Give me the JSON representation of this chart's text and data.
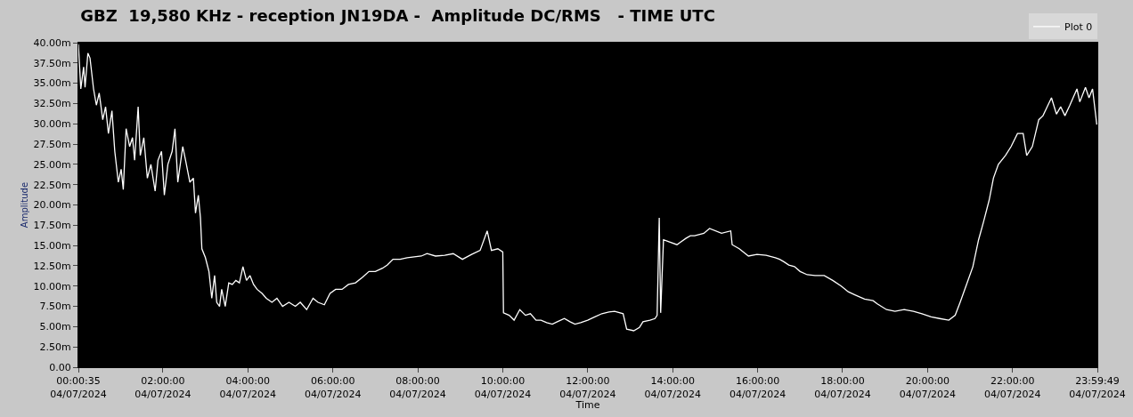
{
  "chart_data": {
    "type": "line",
    "title": "GBZ  19,580 KHz - reception JN19DA -  Amplitude DC/RMS   - TIME UTC",
    "xlabel": "Time",
    "ylabel": "Amplitude",
    "xlim": [
      "2024-07-04T00:00:35",
      "2024-07-04T23:59:49"
    ],
    "xticks": [
      {
        "value": "2024-07-04T00:00:35",
        "label": "00:00:35\n04/07/2024"
      },
      {
        "value": "2024-07-04T02:00",
        "label": "02:00:00\n04/07/2024"
      },
      {
        "value": "2024-07-04T04:00",
        "label": "04:00:00\n04/07/2024"
      },
      {
        "value": "2024-07-04T06:00",
        "label": "06:00:00\n04/07/2024"
      },
      {
        "value": "2024-07-04T08:00",
        "label": "08:00:00\n04/07/2024"
      },
      {
        "value": "2024-07-04T10:00",
        "label": "10:00:00\n04/07/2024"
      },
      {
        "value": "2024-07-04T12:00",
        "label": "12:00:00\n04/07/2024"
      },
      {
        "value": "2024-07-04T14:00",
        "label": "14:00:00\n04/07/2024"
      },
      {
        "value": "2024-07-04T16:00",
        "label": "16:00:00\n04/07/2024"
      },
      {
        "value": "2024-07-04T18:00",
        "label": "18:00:00\n04/07/2024"
      },
      {
        "value": "2024-07-04T20:00",
        "label": "20:00:00\n04/07/2024"
      },
      {
        "value": "2024-07-04T22:00",
        "label": "22:00:00\n04/07/2024"
      },
      {
        "value": "2024-07-04T23:59:49",
        "label": "23:59:49\n04/07/2024"
      }
    ],
    "ylim": [
      0,
      40
    ],
    "yticks": [
      {
        "value": 0,
        "label": "0.00"
      },
      {
        "value": 2.5,
        "label": "2.50m"
      },
      {
        "value": 5,
        "label": "5.00m"
      },
      {
        "value": 7.5,
        "label": "7.50m"
      },
      {
        "value": 10,
        "label": "10.00m"
      },
      {
        "value": 12.5,
        "label": "12.50m"
      },
      {
        "value": 15,
        "label": "15.00m"
      },
      {
        "value": 17.5,
        "label": "17.50m"
      },
      {
        "value": 20,
        "label": "20.00m"
      },
      {
        "value": 22.5,
        "label": "22.50m"
      },
      {
        "value": 25,
        "label": "25.00m"
      },
      {
        "value": 27.5,
        "label": "27.50m"
      },
      {
        "value": 30,
        "label": "30.00m"
      },
      {
        "value": 32.5,
        "label": "32.50m"
      },
      {
        "value": 35,
        "label": "35.00m"
      },
      {
        "value": 37.5,
        "label": "37.50m"
      },
      {
        "value": 40,
        "label": "40.00m"
      }
    ],
    "grid": false,
    "legend": "top right",
    "marker": "none",
    "line_style": "solid",
    "x": [
      "2024-07-04T00:00:35",
      "2024-07-04T00:04",
      "2024-07-04T00:08",
      "2024-07-04T00:10",
      "2024-07-04T00:14",
      "2024-07-04T00:17",
      "2024-07-04T00:22",
      "2024-07-04T00:26",
      "2024-07-04T00:30",
      "2024-07-04T00:35",
      "2024-07-04T00:39",
      "2024-07-04T00:43",
      "2024-07-04T00:48",
      "2024-07-04T00:52",
      "2024-07-04T00:57",
      "2024-07-04T01:01",
      "2024-07-04T01:04",
      "2024-07-04T01:08",
      "2024-07-04T01:13",
      "2024-07-04T01:17",
      "2024-07-04T01:20",
      "2024-07-04T01:25",
      "2024-07-04T01:28",
      "2024-07-04T01:33",
      "2024-07-04T01:38",
      "2024-07-04T01:43",
      "2024-07-04T01:49",
      "2024-07-04T01:53",
      "2024-07-04T01:58",
      "2024-07-04T02:02",
      "2024-07-04T02:07",
      "2024-07-04T02:13",
      "2024-07-04T02:17",
      "2024-07-04T02:21",
      "2024-07-04T02:28",
      "2024-07-04T02:32",
      "2024-07-04T02:38",
      "2024-07-04T02:43",
      "2024-07-04T02:46",
      "2024-07-04T02:50",
      "2024-07-04T02:53",
      "2024-07-04T02:55",
      "2024-07-04T03:00",
      "2024-07-04T03:05",
      "2024-07-04T03:09",
      "2024-07-04T03:13",
      "2024-07-04T03:16",
      "2024-07-04T03:20",
      "2024-07-04T03:23",
      "2024-07-04T03:28",
      "2024-07-04T03:33",
      "2024-07-04T03:38",
      "2024-07-04T03:43",
      "2024-07-04T03:48",
      "2024-07-04T03:53",
      "2024-07-04T03:58",
      "2024-07-04T04:03",
      "2024-07-04T04:08",
      "2024-07-04T04:13",
      "2024-07-04T04:20",
      "2024-07-04T04:26",
      "2024-07-04T04:34",
      "2024-07-04T04:41",
      "2024-07-04T04:49",
      "2024-07-04T04:58",
      "2024-07-04T05:07",
      "2024-07-04T05:14",
      "2024-07-04T05:23",
      "2024-07-04T05:32",
      "2024-07-04T05:39",
      "2024-07-04T05:48",
      "2024-07-04T05:56",
      "2024-07-04T06:04",
      "2024-07-04T06:13",
      "2024-07-04T06:22",
      "2024-07-04T06:32",
      "2024-07-04T06:42",
      "2024-07-04T06:51",
      "2024-07-04T07:00",
      "2024-07-04T07:10",
      "2024-07-04T07:17",
      "2024-07-04T07:25",
      "2024-07-04T07:35",
      "2024-07-04T07:45",
      "2024-07-04T07:55",
      "2024-07-04T08:05",
      "2024-07-04T08:13",
      "2024-07-04T08:25",
      "2024-07-04T08:38",
      "2024-07-04T08:50",
      "2024-07-04T09:03",
      "2024-07-04T09:16",
      "2024-07-04T09:28",
      "2024-07-04T09:38",
      "2024-07-04T09:44",
      "2024-07-04T09:53",
      "2024-07-04T10:00",
      "2024-07-04T10:01",
      "2024-07-04T10:09",
      "2024-07-04T10:16",
      "2024-07-04T10:24",
      "2024-07-04T10:32",
      "2024-07-04T10:39",
      "2024-07-04T10:47",
      "2024-07-04T10:54",
      "2024-07-04T11:02",
      "2024-07-04T11:10",
      "2024-07-04T11:17",
      "2024-07-04T11:27",
      "2024-07-04T11:35",
      "2024-07-04T11:42",
      "2024-07-04T11:50",
      "2024-07-04T12:00",
      "2024-07-04T12:10",
      "2024-07-04T12:20",
      "2024-07-04T12:30",
      "2024-07-04T12:38",
      "2024-07-04T12:50",
      "2024-07-04T12:55",
      "2024-07-04T13:05",
      "2024-07-04T13:13",
      "2024-07-04T13:18",
      "2024-07-04T13:28",
      "2024-07-04T13:35",
      "2024-07-04T13:38",
      "2024-07-04T13:41",
      "2024-07-04T13:43",
      "2024-07-04T13:47",
      "2024-07-04T14:06",
      "2024-07-04T14:19",
      "2024-07-04T14:25",
      "2024-07-04T14:31",
      "2024-07-04T14:44",
      "2024-07-04T14:52",
      "2024-07-04T15:09",
      "2024-07-04T15:22",
      "2024-07-04T15:24",
      "2024-07-04T15:34",
      "2024-07-04T15:47",
      "2024-07-04T15:59",
      "2024-07-04T16:12",
      "2024-07-04T16:25",
      "2024-07-04T16:31",
      "2024-07-04T16:37",
      "2024-07-04T16:44",
      "2024-07-04T16:52",
      "2024-07-04T17:00",
      "2024-07-04T17:10",
      "2024-07-04T17:21",
      "2024-07-04T17:34",
      "2024-07-04T17:46",
      "2024-07-04T17:58",
      "2024-07-04T18:08",
      "2024-07-04T18:18",
      "2024-07-04T18:31",
      "2024-07-04T18:43",
      "2024-07-04T18:49",
      "2024-07-04T19:02",
      "2024-07-04T19:14",
      "2024-07-04T19:27",
      "2024-07-04T19:40",
      "2024-07-04T19:52",
      "2024-07-04T20:05",
      "2024-07-04T20:17",
      "2024-07-04T20:30",
      "2024-07-04T20:39",
      "2024-07-04T20:46",
      "2024-07-04T20:55",
      "2024-07-04T21:04",
      "2024-07-04T21:12",
      "2024-07-04T21:19",
      "2024-07-04T21:27",
      "2024-07-04T21:33",
      "2024-07-04T21:40",
      "2024-07-04T21:50",
      "2024-07-04T21:58",
      "2024-07-04T22:07",
      "2024-07-04T22:15",
      "2024-07-04T22:20",
      "2024-07-04T22:28",
      "2024-07-04T22:37",
      "2024-07-04T22:43",
      "2024-07-04T22:49",
      "2024-07-04T22:55",
      "2024-07-04T23:02",
      "2024-07-04T23:08",
      "2024-07-04T23:14",
      "2024-07-04T23:21",
      "2024-07-04T23:31",
      "2024-07-04T23:35",
      "2024-07-04T23:43",
      "2024-07-04T23:48",
      "2024-07-04T23:53",
      "2024-07-04T23:59"
    ],
    "series": [
      {
        "name": "Plot 0",
        "color": "#ffffff",
        "values": [
          39.8,
          34.3,
          37.0,
          34.5,
          38.7,
          38.1,
          34.3,
          32.3,
          33.8,
          30.5,
          32.1,
          28.8,
          31.6,
          26.6,
          22.8,
          24.4,
          21.9,
          29.4,
          27.2,
          28.3,
          25.5,
          32.1,
          26.1,
          28.3,
          23.3,
          25.0,
          21.7,
          25.5,
          26.6,
          21.2,
          25.0,
          26.6,
          29.4,
          22.8,
          27.2,
          25.5,
          22.8,
          23.3,
          19.0,
          21.2,
          18.4,
          14.6,
          13.5,
          11.8,
          8.5,
          11.3,
          8.0,
          7.5,
          9.6,
          7.5,
          10.4,
          10.2,
          10.7,
          10.4,
          12.4,
          10.7,
          11.3,
          10.2,
          9.6,
          9.1,
          8.5,
          8.0,
          8.5,
          7.5,
          8.0,
          7.5,
          8.0,
          7.1,
          8.5,
          8.0,
          7.7,
          9.1,
          9.6,
          9.6,
          10.2,
          10.4,
          11.1,
          11.8,
          11.8,
          12.2,
          12.6,
          13.3,
          13.3,
          13.5,
          13.6,
          13.7,
          14.0,
          13.7,
          13.8,
          14.0,
          13.3,
          13.9,
          14.4,
          16.8,
          14.4,
          14.6,
          14.2,
          6.7,
          6.4,
          5.8,
          7.1,
          6.4,
          6.6,
          5.8,
          5.8,
          5.5,
          5.3,
          5.6,
          6.0,
          5.6,
          5.3,
          5.5,
          5.8,
          6.2,
          6.6,
          6.8,
          6.9,
          6.6,
          4.7,
          4.5,
          4.9,
          5.6,
          5.8,
          6.0,
          6.4,
          18.4,
          6.7,
          15.7,
          15.1,
          15.9,
          16.2,
          16.2,
          16.5,
          17.1,
          16.5,
          16.8,
          15.1,
          14.6,
          13.7,
          13.9,
          13.8,
          13.5,
          13.3,
          13.0,
          12.6,
          12.4,
          11.8,
          11.4,
          11.3,
          11.3,
          10.7,
          10.0,
          9.3,
          8.9,
          8.4,
          8.2,
          7.8,
          7.1,
          6.9,
          7.1,
          6.9,
          6.6,
          6.2,
          6.0,
          5.8,
          6.4,
          8.0,
          10.2,
          12.4,
          15.7,
          17.9,
          20.6,
          23.3,
          25.0,
          26.1,
          27.2,
          28.8,
          28.8,
          26.1,
          27.2,
          30.5,
          31.0,
          32.1,
          33.2,
          31.2,
          32.1,
          31.0,
          32.3,
          34.3,
          32.7,
          34.5,
          33.2,
          34.3,
          29.9
        ]
      }
    ]
  }
}
